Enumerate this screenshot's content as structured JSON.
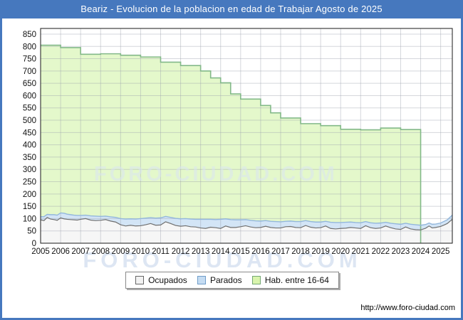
{
  "window": {
    "title": "Beariz - Evolucion de la poblacion en edad de Trabajar Agosto de 2025"
  },
  "footer": {
    "url": "http://www.foro-ciudad.com"
  },
  "watermarks": {
    "center": "FORO-CIUDAD.COM",
    "bottom": "FORO-CIUDAD.COM"
  },
  "colors": {
    "header_blue": "#4678be",
    "grid": "#9aa0ab",
    "plot_border": "#1a1a1a",
    "watermark": "#d9e3f2"
  },
  "legend": {
    "items": [
      {
        "label": "Ocupados",
        "fill": "#f2f2f2",
        "stroke": "#666666"
      },
      {
        "label": "Parados",
        "fill": "#c5dcf2",
        "stroke": "#6f9dc9"
      },
      {
        "label": "Hab. entre 16-64",
        "fill": "#d9f4ad",
        "stroke": "#74a874"
      }
    ]
  },
  "chart_data": {
    "type": "area",
    "title": "Beariz - Evolucion de la poblacion en edad de Trabajar Agosto de 2025",
    "xlabel": "",
    "ylabel": "",
    "x_range": [
      2005,
      2025.583
    ],
    "y_range": [
      0,
      873
    ],
    "x_ticks": [
      2005,
      2006,
      2007,
      2008,
      2009,
      2010,
      2011,
      2012,
      2013,
      2014,
      2015,
      2016,
      2017,
      2018,
      2019,
      2020,
      2021,
      2022,
      2023,
      2024,
      2025
    ],
    "y_ticks": [
      0,
      50,
      100,
      150,
      200,
      250,
      300,
      350,
      400,
      450,
      500,
      550,
      600,
      650,
      700,
      750,
      800,
      850
    ],
    "grid": true,
    "legend_position": "bottom",
    "series": {
      "hab_16_64": {
        "name": "Hab. entre 16-64",
        "type": "step-area",
        "fill": "#e4f8cb",
        "stroke": "#83b989",
        "end_x": 2024.0,
        "points": [
          [
            2005,
            805
          ],
          [
            2006,
            795
          ],
          [
            2007,
            768
          ],
          [
            2008,
            770
          ],
          [
            2009,
            764
          ],
          [
            2010,
            757
          ],
          [
            2011,
            736
          ],
          [
            2012,
            722
          ],
          [
            2013,
            700
          ],
          [
            2013.5,
            672
          ],
          [
            2014,
            652
          ],
          [
            2014.5,
            607
          ],
          [
            2015,
            586
          ],
          [
            2016,
            560
          ],
          [
            2016.5,
            530
          ],
          [
            2017,
            509
          ],
          [
            2018,
            486
          ],
          [
            2019,
            478
          ],
          [
            2020,
            463
          ],
          [
            2021,
            461
          ],
          [
            2022,
            468
          ],
          [
            2023,
            462
          ]
        ]
      },
      "ocupados": {
        "name": "Ocupados",
        "type": "area",
        "fill": "#f6f6f6",
        "stroke": "#6f6f6f"
      },
      "parados": {
        "name": "Parados",
        "type": "area-stacked-on-ocupados",
        "fill": "#d3e5f6",
        "stroke": "#93b7dc"
      },
      "monthly_points_x_ocupados_parados": [
        [
          2005.0,
          95,
          13
        ],
        [
          2005.17,
          92,
          16
        ],
        [
          2005.33,
          105,
          12
        ],
        [
          2005.5,
          98,
          18
        ],
        [
          2005.67,
          96,
          20
        ],
        [
          2005.83,
          93,
          21
        ],
        [
          2006.0,
          103,
          20
        ],
        [
          2006.17,
          99,
          23
        ],
        [
          2006.33,
          97,
          21
        ],
        [
          2006.5,
          96,
          20
        ],
        [
          2006.67,
          95,
          19
        ],
        [
          2006.83,
          94,
          19
        ],
        [
          2007.0,
          97,
          16
        ],
        [
          2007.25,
          100,
          14
        ],
        [
          2007.5,
          94,
          17
        ],
        [
          2007.75,
          92,
          18
        ],
        [
          2008.0,
          93,
          16
        ],
        [
          2008.25,
          96,
          14
        ],
        [
          2008.5,
          90,
          17
        ],
        [
          2008.75,
          86,
          19
        ],
        [
          2009.0,
          75,
          25
        ],
        [
          2009.25,
          70,
          28
        ],
        [
          2009.5,
          73,
          26
        ],
        [
          2009.75,
          70,
          28
        ],
        [
          2010.0,
          71,
          29
        ],
        [
          2010.25,
          75,
          27
        ],
        [
          2010.5,
          80,
          24
        ],
        [
          2010.75,
          73,
          29
        ],
        [
          2011.0,
          74,
          29
        ],
        [
          2011.25,
          87,
          22
        ],
        [
          2011.5,
          80,
          25
        ],
        [
          2011.75,
          72,
          29
        ],
        [
          2012.0,
          69,
          30
        ],
        [
          2012.25,
          71,
          29
        ],
        [
          2012.5,
          67,
          31
        ],
        [
          2012.75,
          66,
          31
        ],
        [
          2013.0,
          62,
          35
        ],
        [
          2013.25,
          60,
          37
        ],
        [
          2013.5,
          65,
          32
        ],
        [
          2013.75,
          63,
          33
        ],
        [
          2014.0,
          60,
          37
        ],
        [
          2014.25,
          70,
          29
        ],
        [
          2014.5,
          64,
          32
        ],
        [
          2014.75,
          64,
          31
        ],
        [
          2015.0,
          67,
          28
        ],
        [
          2015.25,
          71,
          25
        ],
        [
          2015.5,
          66,
          27
        ],
        [
          2015.75,
          63,
          28
        ],
        [
          2016.0,
          64,
          26
        ],
        [
          2016.25,
          69,
          23
        ],
        [
          2016.5,
          64,
          25
        ],
        [
          2016.75,
          62,
          26
        ],
        [
          2017.0,
          62,
          25
        ],
        [
          2017.25,
          67,
          22
        ],
        [
          2017.5,
          68,
          22
        ],
        [
          2017.75,
          64,
          24
        ],
        [
          2018.0,
          63,
          25
        ],
        [
          2018.25,
          72,
          20
        ],
        [
          2018.5,
          65,
          23
        ],
        [
          2018.75,
          62,
          24
        ],
        [
          2019.0,
          63,
          23
        ],
        [
          2019.25,
          70,
          19
        ],
        [
          2019.5,
          60,
          25
        ],
        [
          2019.75,
          58,
          26
        ],
        [
          2020.0,
          60,
          24
        ],
        [
          2020.25,
          61,
          24
        ],
        [
          2020.5,
          64,
          22
        ],
        [
          2020.75,
          62,
          22
        ],
        [
          2021.0,
          60,
          23
        ],
        [
          2021.25,
          71,
          17
        ],
        [
          2021.5,
          63,
          20
        ],
        [
          2021.75,
          60,
          21
        ],
        [
          2022.0,
          62,
          20
        ],
        [
          2022.25,
          70,
          15
        ],
        [
          2022.5,
          63,
          18
        ],
        [
          2022.75,
          58,
          21
        ],
        [
          2023.0,
          56,
          21
        ],
        [
          2023.25,
          66,
          15
        ],
        [
          2023.5,
          58,
          19
        ],
        [
          2023.75,
          55,
          20
        ],
        [
          2024.0,
          54,
          19
        ],
        [
          2024.25,
          61,
          15
        ],
        [
          2024.42,
          70,
          12
        ],
        [
          2024.58,
          62,
          15
        ],
        [
          2024.75,
          64,
          14
        ],
        [
          2025.0,
          68,
          14
        ],
        [
          2025.17,
          74,
          15
        ],
        [
          2025.33,
          80,
          15
        ],
        [
          2025.58,
          97,
          17
        ]
      ]
    }
  }
}
